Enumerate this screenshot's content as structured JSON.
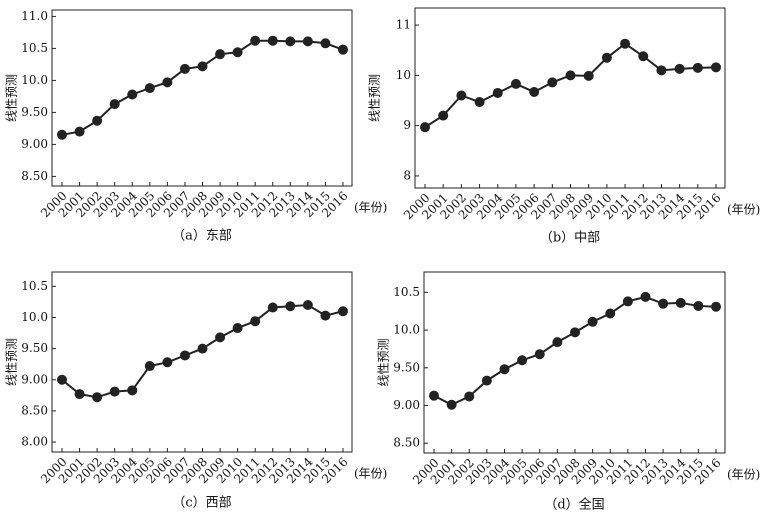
{
  "chart_data": [
    {
      "type": "line",
      "title": "（a）东部",
      "y_label": "线性预测",
      "x_label": "(年份)",
      "color": "#222222",
      "categories": [
        "2000",
        "2001",
        "2002",
        "2003",
        "2004",
        "2005",
        "2006",
        "2007",
        "2008",
        "2009",
        "2010",
        "2011",
        "2012",
        "2013",
        "2014",
        "2015",
        "2016"
      ],
      "values": [
        9.15,
        9.2,
        9.37,
        9.63,
        9.78,
        9.88,
        9.97,
        10.18,
        10.22,
        10.41,
        10.44,
        10.62,
        10.62,
        10.61,
        10.61,
        10.58,
        10.48
      ],
      "ylim": [
        8.35,
        11.1
      ],
      "yticks": [
        {
          "value": 11,
          "label": "11.0"
        },
        10.5,
        {
          "value": 10,
          "label": "10.0"
        },
        {
          "value": 9.5,
          "label": "9.50"
        },
        {
          "value": 9,
          "label": "9.00"
        },
        {
          "value": 8.5,
          "label": "8.50"
        }
      ]
    },
    {
      "type": "line",
      "title": "（b）中部",
      "y_label": "线性预测",
      "x_label": "(年份)",
      "color": "#222222",
      "categories": [
        "2000",
        "2001",
        "2002",
        "2003",
        "2004",
        "2005",
        "2006",
        "2007",
        "2008",
        "2009",
        "2010",
        "2011",
        "2012",
        "2013",
        "2014",
        "2015",
        "2016"
      ],
      "values": [
        8.97,
        9.2,
        9.6,
        9.47,
        9.65,
        9.83,
        9.67,
        9.86,
        10.0,
        9.99,
        10.35,
        10.63,
        10.38,
        10.1,
        10.13,
        10.15,
        10.16
      ],
      "ylim": [
        7.76,
        11.34
      ],
      "yticks": [
        11,
        10,
        9,
        8
      ]
    },
    {
      "type": "line",
      "title": "（c）西部",
      "y_label": "线性预测",
      "x_label": "(年份)",
      "color": "#222222",
      "categories": [
        "2000",
        "2001",
        "2002",
        "2003",
        "2004",
        "2005",
        "2006",
        "2007",
        "2008",
        "2009",
        "2010",
        "2011",
        "2012",
        "2013",
        "2014",
        "2015",
        "2016"
      ],
      "values": [
        9.0,
        8.77,
        8.72,
        8.81,
        8.83,
        9.22,
        9.28,
        9.39,
        9.5,
        9.68,
        9.83,
        9.94,
        10.16,
        10.18,
        10.2,
        10.03,
        10.1
      ],
      "ylim": [
        7.84,
        10.73
      ],
      "yticks": [
        10.5,
        {
          "value": 10,
          "label": "10.0"
        },
        {
          "value": 9.5,
          "label": "9.50"
        },
        {
          "value": 9,
          "label": "9.00"
        },
        {
          "value": 8.5,
          "label": "8.50"
        },
        {
          "value": 8,
          "label": "8.00"
        }
      ]
    },
    {
      "type": "line",
      "title": "（d）全国",
      "y_label": "线性预测",
      "x_label": "(年份)",
      "color": "#222222",
      "categories": [
        "2000",
        "2001",
        "2002",
        "2003",
        "2004",
        "2005",
        "2006",
        "2007",
        "2008",
        "2009",
        "2010",
        "2011",
        "2012",
        "2013",
        "2014",
        "2015",
        "2016"
      ],
      "values": [
        9.13,
        9.01,
        9.12,
        9.33,
        9.48,
        9.6,
        9.68,
        9.84,
        9.97,
        10.11,
        10.22,
        10.38,
        10.44,
        10.35,
        10.36,
        10.32,
        10.31
      ],
      "ylim": [
        8.37,
        10.77
      ],
      "yticks": [
        10.5,
        {
          "value": 10,
          "label": "10.0"
        },
        {
          "value": 9.5,
          "label": "9.50"
        },
        {
          "value": 9,
          "label": "9.00"
        },
        {
          "value": 8.5,
          "label": "8.50"
        }
      ]
    }
  ]
}
